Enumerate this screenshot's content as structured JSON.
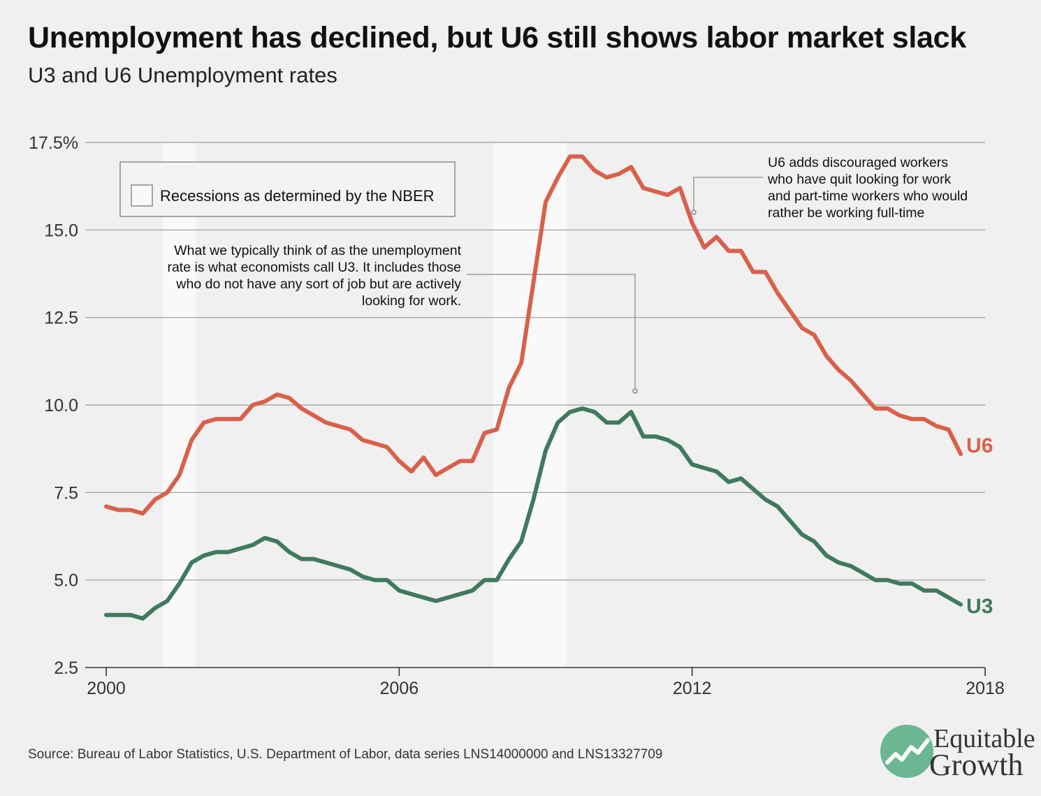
{
  "title": "Unemployment has declined, but U6 still shows labor market slack",
  "subtitle": "U3 and U6 Unemployment rates",
  "source": "Source: Bureau of Labor Statistics, U.S. Department of Labor, data series LNS14000000 and LNS13327709",
  "logo": {
    "line1": "Equitable",
    "line2": "Growth"
  },
  "annotations": {
    "u3_note": [
      "What we typically think of as the unemployment",
      "rate is what economists call U3. It includes those",
      "who do not have any sort of job but are actively",
      "looking for work."
    ],
    "u6_note": [
      "U6 adds discouraged workers",
      "who have quit looking for work",
      "and part-time workers who would",
      "rather be working full-time"
    ]
  },
  "legend": {
    "label": "Recessions as determined by the NBER"
  },
  "colors": {
    "u6": "#d9604a",
    "u3": "#3f7a5e",
    "recession": "#f9f9f9",
    "grid": "#9a9a9a",
    "background": "#f0f0f0"
  },
  "chart_data": {
    "type": "line",
    "title": "Unemployment has declined, but U6 still shows labor market slack",
    "subtitle": "U3 and U6 Unemployment rates",
    "xlim": [
      2000,
      2018
    ],
    "ylim": [
      2.5,
      17.5
    ],
    "x_ticks": [
      "2000",
      "2006",
      "2012",
      "2018"
    ],
    "y_ticks": [
      "17.5%",
      "15.0",
      "12.5",
      "10.0",
      "7.5",
      "5.0",
      "2.5"
    ],
    "recessions": [
      [
        2001.17,
        2001.83
      ],
      [
        2007.92,
        2009.42
      ]
    ],
    "series": [
      {
        "name": "U6",
        "points": [
          [
            2000.0,
            7.1
          ],
          [
            2000.25,
            7.0
          ],
          [
            2000.5,
            7.0
          ],
          [
            2000.75,
            6.9
          ],
          [
            2001.0,
            7.3
          ],
          [
            2001.25,
            7.5
          ],
          [
            2001.5,
            8.0
          ],
          [
            2001.75,
            9.0
          ],
          [
            2002.0,
            9.5
          ],
          [
            2002.25,
            9.6
          ],
          [
            2002.5,
            9.6
          ],
          [
            2002.75,
            9.6
          ],
          [
            2003.0,
            10.0
          ],
          [
            2003.25,
            10.1
          ],
          [
            2003.5,
            10.3
          ],
          [
            2003.75,
            10.2
          ],
          [
            2004.0,
            9.9
          ],
          [
            2004.25,
            9.7
          ],
          [
            2004.5,
            9.5
          ],
          [
            2004.75,
            9.4
          ],
          [
            2005.0,
            9.3
          ],
          [
            2005.25,
            9.0
          ],
          [
            2005.5,
            8.9
          ],
          [
            2005.75,
            8.8
          ],
          [
            2006.0,
            8.4
          ],
          [
            2006.25,
            8.1
          ],
          [
            2006.5,
            8.5
          ],
          [
            2006.75,
            8.0
          ],
          [
            2007.0,
            8.2
          ],
          [
            2007.25,
            8.4
          ],
          [
            2007.5,
            8.4
          ],
          [
            2007.75,
            9.2
          ],
          [
            2008.0,
            9.3
          ],
          [
            2008.25,
            10.5
          ],
          [
            2008.5,
            11.2
          ],
          [
            2008.75,
            13.5
          ],
          [
            2009.0,
            15.8
          ],
          [
            2009.25,
            16.5
          ],
          [
            2009.5,
            17.1
          ],
          [
            2009.75,
            17.1
          ],
          [
            2010.0,
            16.7
          ],
          [
            2010.25,
            16.5
          ],
          [
            2010.5,
            16.6
          ],
          [
            2010.75,
            16.8
          ],
          [
            2011.0,
            16.2
          ],
          [
            2011.25,
            16.1
          ],
          [
            2011.5,
            16.0
          ],
          [
            2011.75,
            16.2
          ],
          [
            2012.0,
            15.2
          ],
          [
            2012.25,
            14.5
          ],
          [
            2012.5,
            14.8
          ],
          [
            2012.75,
            14.4
          ],
          [
            2013.0,
            14.4
          ],
          [
            2013.25,
            13.8
          ],
          [
            2013.5,
            13.8
          ],
          [
            2013.75,
            13.2
          ],
          [
            2014.0,
            12.7
          ],
          [
            2014.25,
            12.2
          ],
          [
            2014.5,
            12.0
          ],
          [
            2014.75,
            11.4
          ],
          [
            2015.0,
            11.0
          ],
          [
            2015.25,
            10.7
          ],
          [
            2015.5,
            10.3
          ],
          [
            2015.75,
            9.9
          ],
          [
            2016.0,
            9.9
          ],
          [
            2016.25,
            9.7
          ],
          [
            2016.5,
            9.6
          ],
          [
            2016.75,
            9.6
          ],
          [
            2017.0,
            9.4
          ],
          [
            2017.25,
            9.3
          ],
          [
            2017.5,
            8.6
          ]
        ]
      },
      {
        "name": "U3",
        "points": [
          [
            2000.0,
            4.0
          ],
          [
            2000.25,
            4.0
          ],
          [
            2000.5,
            4.0
          ],
          [
            2000.75,
            3.9
          ],
          [
            2001.0,
            4.2
          ],
          [
            2001.25,
            4.4
          ],
          [
            2001.5,
            4.9
          ],
          [
            2001.75,
            5.5
          ],
          [
            2002.0,
            5.7
          ],
          [
            2002.25,
            5.8
          ],
          [
            2002.5,
            5.8
          ],
          [
            2002.75,
            5.9
          ],
          [
            2003.0,
            6.0
          ],
          [
            2003.25,
            6.2
          ],
          [
            2003.5,
            6.1
          ],
          [
            2003.75,
            5.8
          ],
          [
            2004.0,
            5.6
          ],
          [
            2004.25,
            5.6
          ],
          [
            2004.5,
            5.5
          ],
          [
            2004.75,
            5.4
          ],
          [
            2005.0,
            5.3
          ],
          [
            2005.25,
            5.1
          ],
          [
            2005.5,
            5.0
          ],
          [
            2005.75,
            5.0
          ],
          [
            2006.0,
            4.7
          ],
          [
            2006.25,
            4.6
          ],
          [
            2006.5,
            4.5
          ],
          [
            2006.75,
            4.4
          ],
          [
            2007.0,
            4.5
          ],
          [
            2007.25,
            4.6
          ],
          [
            2007.5,
            4.7
          ],
          [
            2007.75,
            5.0
          ],
          [
            2008.0,
            5.0
          ],
          [
            2008.25,
            5.6
          ],
          [
            2008.5,
            6.1
          ],
          [
            2008.75,
            7.3
          ],
          [
            2009.0,
            8.7
          ],
          [
            2009.25,
            9.5
          ],
          [
            2009.5,
            9.8
          ],
          [
            2009.75,
            9.9
          ],
          [
            2010.0,
            9.8
          ],
          [
            2010.25,
            9.5
          ],
          [
            2010.5,
            9.5
          ],
          [
            2010.75,
            9.8
          ],
          [
            2011.0,
            9.1
          ],
          [
            2011.25,
            9.1
          ],
          [
            2011.5,
            9.0
          ],
          [
            2011.75,
            8.8
          ],
          [
            2012.0,
            8.3
          ],
          [
            2012.25,
            8.2
          ],
          [
            2012.5,
            8.1
          ],
          [
            2012.75,
            7.8
          ],
          [
            2013.0,
            7.9
          ],
          [
            2013.25,
            7.6
          ],
          [
            2013.5,
            7.3
          ],
          [
            2013.75,
            7.1
          ],
          [
            2014.0,
            6.7
          ],
          [
            2014.25,
            6.3
          ],
          [
            2014.5,
            6.1
          ],
          [
            2014.75,
            5.7
          ],
          [
            2015.0,
            5.5
          ],
          [
            2015.25,
            5.4
          ],
          [
            2015.5,
            5.2
          ],
          [
            2015.75,
            5.0
          ],
          [
            2016.0,
            5.0
          ],
          [
            2016.25,
            4.9
          ],
          [
            2016.5,
            4.9
          ],
          [
            2016.75,
            4.7
          ],
          [
            2017.0,
            4.7
          ],
          [
            2017.25,
            4.5
          ],
          [
            2017.5,
            4.3
          ]
        ]
      }
    ]
  }
}
